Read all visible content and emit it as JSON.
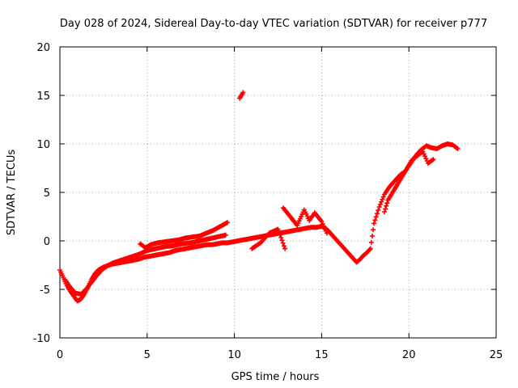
{
  "chart_data": {
    "type": "scatter",
    "title": "Day 028 of 2024, Sidereal Day-to-day VTEC variation (SDTVAR) for receiver p777",
    "xlabel": "GPS time / hours",
    "ylabel": "SDTVAR / TECUs",
    "xlim": [
      0,
      25
    ],
    "ylim": [
      -10,
      20
    ],
    "xticks": [
      "0",
      "5",
      "10",
      "15",
      "20",
      "25"
    ],
    "yticks": [
      "-10",
      "-5",
      "0",
      "5",
      "10",
      "15",
      "20"
    ],
    "grid": true,
    "marker": "plus",
    "color": "#ff0000",
    "series": [
      {
        "x": [
          0.0,
          0.2,
          0.4,
          0.6,
          0.8,
          1.0,
          1.2,
          1.4,
          1.6,
          1.8,
          2.0,
          2.2,
          2.5,
          2.8,
          3.0,
          3.3,
          3.6,
          3.9,
          4.2,
          4.5,
          4.8,
          5.1,
          5.4,
          5.7,
          6.0,
          6.3,
          6.6,
          6.9,
          7.2,
          7.5,
          7.8,
          8.1,
          8.4,
          8.7,
          9.0,
          9.3,
          9.6,
          9.9,
          10.2,
          10.5,
          10.8,
          11.1,
          11.4,
          11.7,
          12.0,
          12.3,
          12.6,
          12.9,
          13.2,
          13.5,
          13.8,
          14.1,
          14.4,
          14.7,
          15.0,
          15.3,
          15.6,
          15.9,
          16.2,
          16.5,
          16.8,
          17.0,
          17.2,
          17.4,
          17.6,
          17.8,
          18.0,
          18.3,
          18.6,
          18.9,
          19.2,
          19.5,
          19.8,
          20.1,
          20.4,
          20.7,
          21.0,
          21.3,
          21.6,
          21.9,
          22.2,
          22.5,
          22.8
        ],
        "y": [
          -3.0,
          -3.8,
          -4.6,
          -5.2,
          -5.7,
          -6.2,
          -6.0,
          -5.5,
          -4.8,
          -4.0,
          -3.4,
          -3.0,
          -2.7,
          -2.5,
          -2.4,
          -2.3,
          -2.2,
          -2.1,
          -2.0,
          -1.9,
          -1.7,
          -1.6,
          -1.5,
          -1.4,
          -1.3,
          -1.2,
          -1.0,
          -0.9,
          -0.8,
          -0.7,
          -0.6,
          -0.5,
          -0.4,
          -0.4,
          -0.3,
          -0.2,
          -0.2,
          -0.1,
          0.0,
          0.1,
          0.2,
          0.3,
          0.4,
          0.5,
          0.6,
          0.7,
          0.8,
          0.9,
          1.0,
          1.1,
          1.2,
          1.3,
          1.4,
          1.4,
          1.5,
          1.2,
          0.6,
          0.0,
          -0.6,
          -1.2,
          -1.8,
          -2.2,
          -1.9,
          -1.5,
          -1.2,
          -0.8,
          1.8,
          3.5,
          4.8,
          5.6,
          6.2,
          6.8,
          7.2,
          8.0,
          8.8,
          9.4,
          9.8,
          9.6,
          9.5,
          9.8,
          10.0,
          9.9,
          9.5
        ]
      },
      {
        "x": [
          0.3,
          0.6,
          0.9,
          1.2,
          1.5,
          1.8,
          2.1,
          2.4,
          2.7,
          3.0,
          3.5,
          4.0,
          4.5,
          5.0,
          5.5,
          6.0,
          6.5,
          7.0,
          7.5,
          8.0,
          8.5,
          9.0,
          9.5
        ],
        "y": [
          -4.0,
          -4.8,
          -5.4,
          -5.5,
          -5.0,
          -4.3,
          -3.6,
          -3.0,
          -2.6,
          -2.3,
          -2.0,
          -1.7,
          -1.4,
          -1.0,
          -0.8,
          -0.6,
          -0.5,
          -0.3,
          -0.2,
          0.0,
          0.2,
          0.4,
          0.6
        ]
      },
      {
        "x": [
          4.6,
          4.9,
          5.2,
          5.6,
          6.0,
          6.4,
          6.8,
          7.2,
          7.6,
          8.0,
          8.4,
          8.8,
          9.2,
          9.6
        ],
        "y": [
          -0.3,
          -0.7,
          -0.4,
          -0.2,
          -0.1,
          0.0,
          0.1,
          0.3,
          0.4,
          0.5,
          0.8,
          1.1,
          1.5,
          1.9
        ]
      },
      {
        "x": [
          10.3,
          10.4,
          10.5
        ],
        "y": [
          14.7,
          15.0,
          15.3
        ]
      },
      {
        "x": [
          12.8,
          13.6,
          14.0,
          14.3,
          14.6,
          15.0,
          15.3
        ],
        "y": [
          3.4,
          1.6,
          3.2,
          2.1,
          2.9,
          2.0,
          0.8
        ]
      },
      {
        "x": [
          11.0,
          11.5,
          12.0,
          12.5,
          12.9
        ],
        "y": [
          -0.8,
          -0.2,
          0.8,
          1.2,
          -0.8
        ]
      },
      {
        "x": [
          18.6,
          18.8,
          19.0,
          19.2,
          19.4,
          19.6,
          19.8,
          20.0,
          20.2,
          20.5,
          20.8,
          21.1,
          21.4
        ],
        "y": [
          3.0,
          4.2,
          4.8,
          5.4,
          6.0,
          6.6,
          7.2,
          7.8,
          8.4,
          8.8,
          9.2,
          8.0,
          8.4
        ]
      }
    ]
  }
}
